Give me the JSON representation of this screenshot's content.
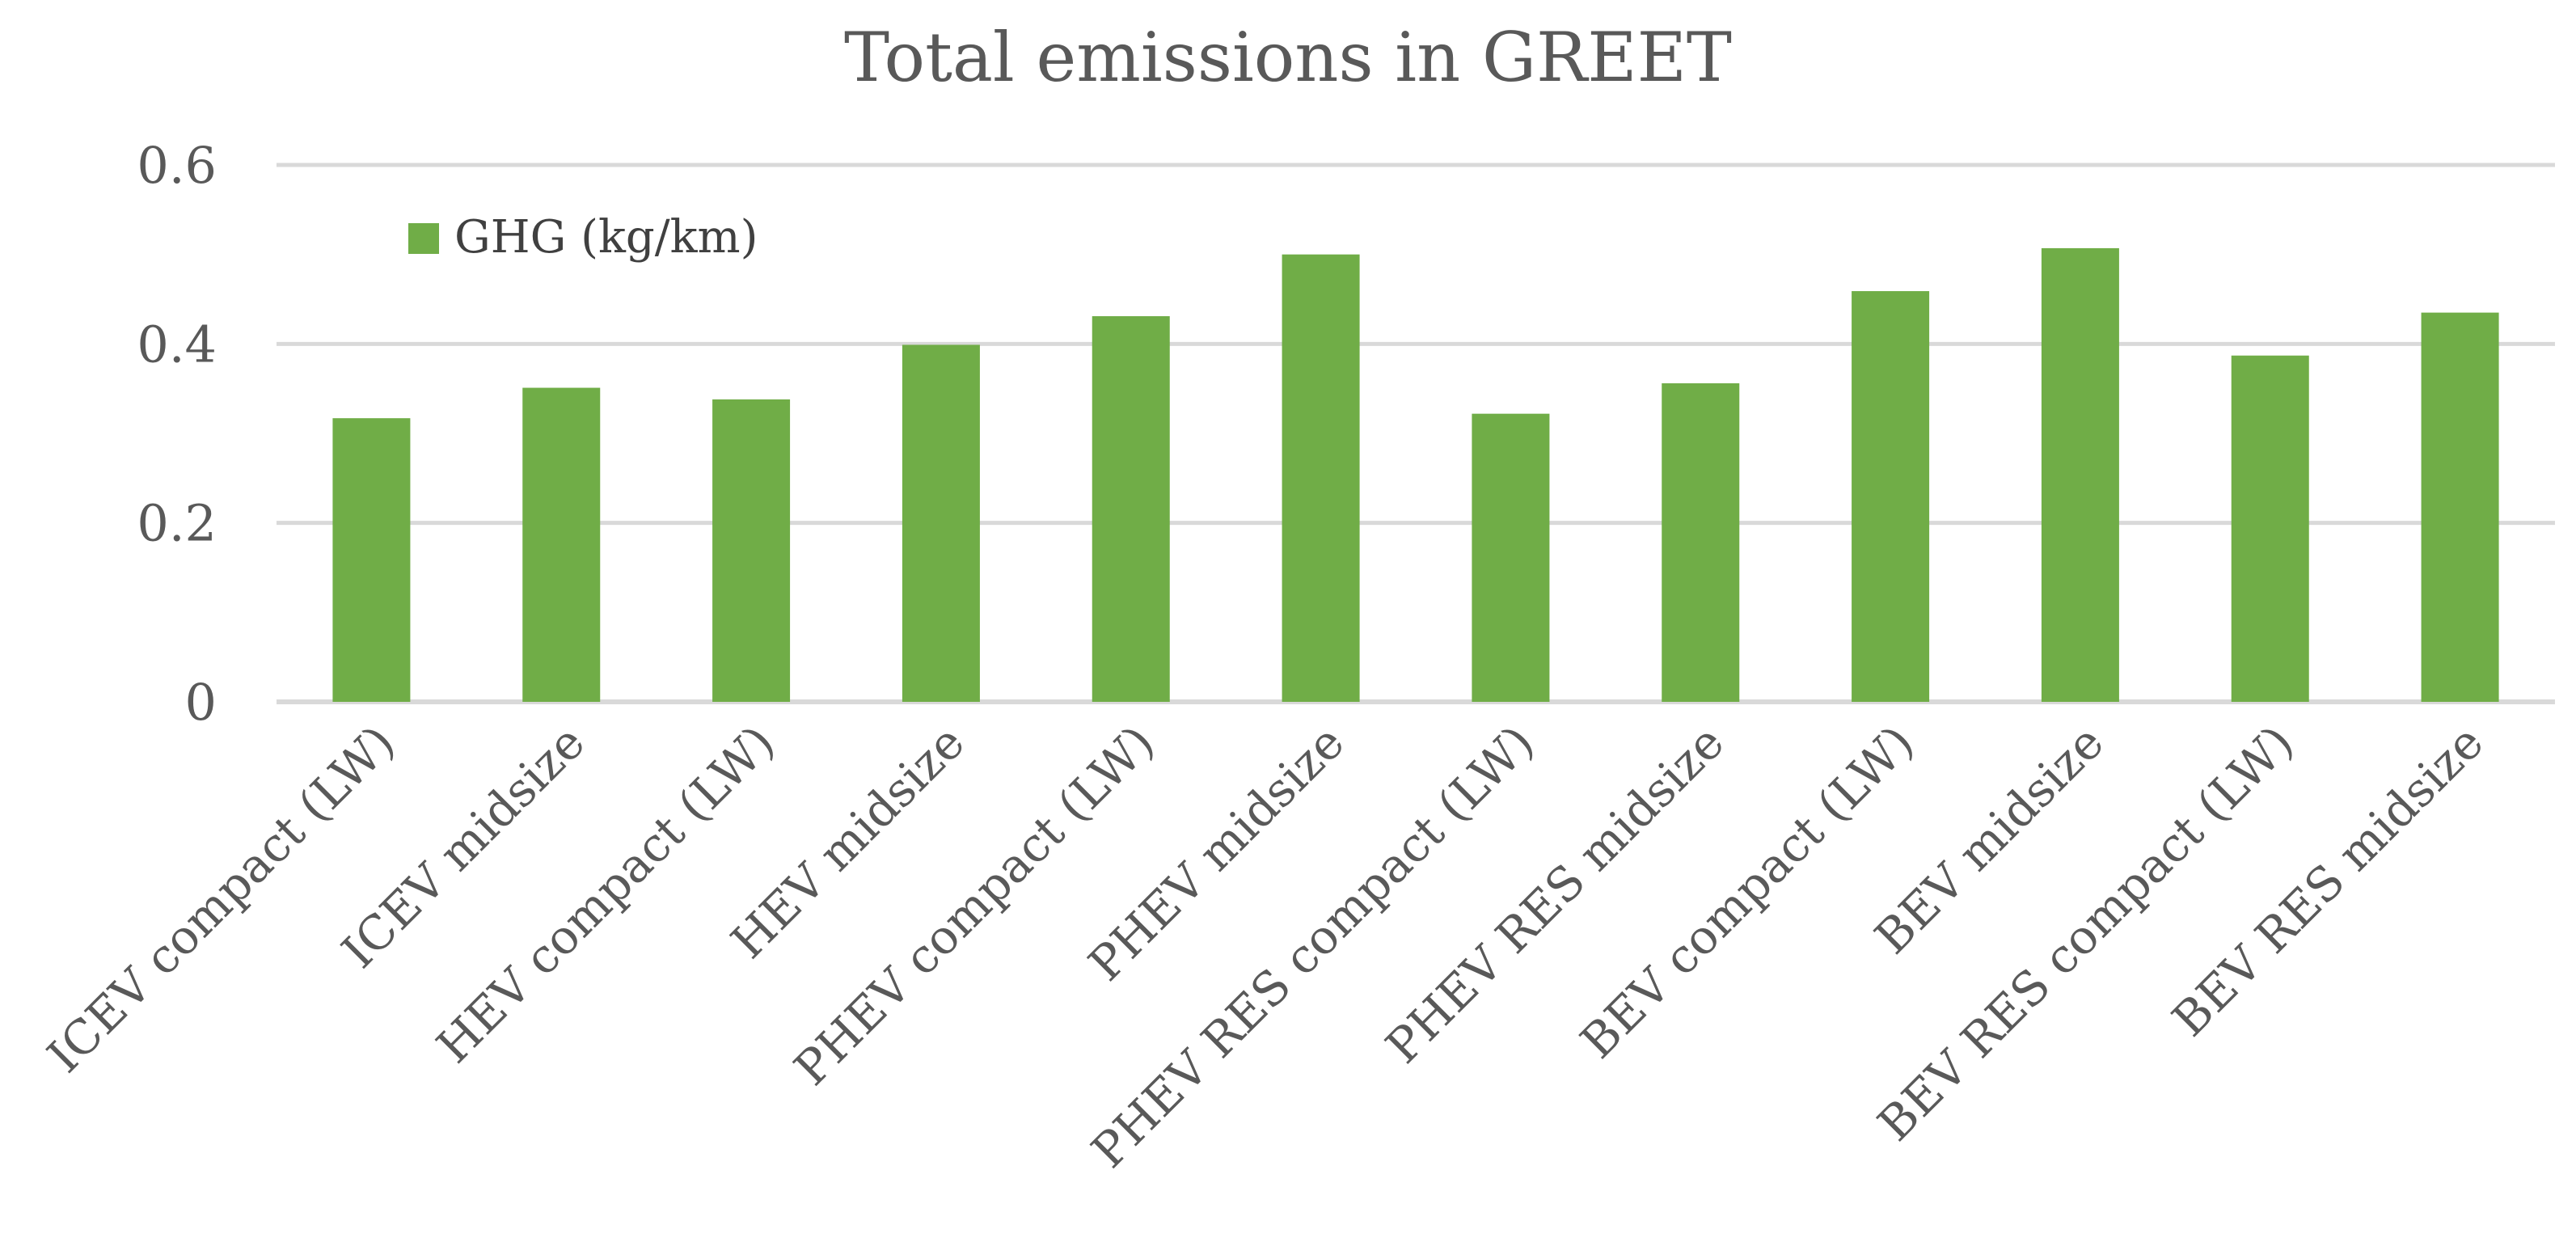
{
  "chart_data": {
    "type": "bar",
    "title": "Total emissions in GREET",
    "xlabel": "",
    "ylabel": "",
    "ylim": [
      0,
      0.6
    ],
    "yticks": [
      0,
      0.2,
      0.4,
      0.6
    ],
    "ytick_labels": [
      "0",
      "0.2",
      "0.4",
      "0.6"
    ],
    "grid": true,
    "legend_position": "top-left",
    "categories": [
      "ICEV compact (LW)",
      "ICEV midsize",
      "HEV compact (LW)",
      "HEV midsize",
      "PHEV compact (LW)",
      "PHEV midsize",
      "PHEV RES compact (LW)",
      "PHEV RES midsize",
      "BEV compact (LW)",
      "BEV midsize",
      "BEV RES compact (LW)",
      "BEV RES midsize"
    ],
    "series": [
      {
        "name": "GHG (kg/km)",
        "color": "#70ad47",
        "values": [
          0.317,
          0.351,
          0.338,
          0.399,
          0.431,
          0.5,
          0.322,
          0.356,
          0.459,
          0.507,
          0.387,
          0.435
        ]
      }
    ]
  },
  "colors": {
    "bar": "#70ad47",
    "grid": "#d9d9d9",
    "text": "#595959"
  }
}
